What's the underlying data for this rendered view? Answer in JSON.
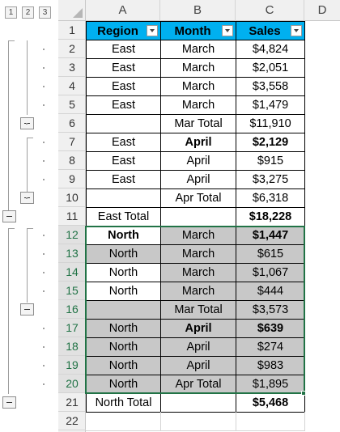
{
  "outline_levels": [
    "1",
    "2",
    "3"
  ],
  "columns": [
    "A",
    "B",
    "C",
    "D"
  ],
  "rows": [
    "1",
    "2",
    "3",
    "4",
    "5",
    "6",
    "7",
    "8",
    "9",
    "10",
    "11",
    "12",
    "13",
    "14",
    "15",
    "16",
    "17",
    "18",
    "19",
    "20",
    "21",
    "22"
  ],
  "headers": {
    "region": "Region",
    "month": "Month",
    "sales": "Sales"
  },
  "table": [
    {
      "a": "East",
      "b": "March",
      "c": "$4,824"
    },
    {
      "a": "East",
      "b": "March",
      "c": "$2,051"
    },
    {
      "a": "East",
      "b": "March",
      "c": "$3,558"
    },
    {
      "a": "East",
      "b": "March",
      "c": "$1,479"
    },
    {
      "a": "",
      "b": "Mar Total",
      "c": "$11,910"
    },
    {
      "a": "East",
      "b": "April",
      "c": "$2,129"
    },
    {
      "a": "East",
      "b": "April",
      "c": "$915"
    },
    {
      "a": "East",
      "b": "April",
      "c": "$3,275"
    },
    {
      "a": "",
      "b": "Apr Total",
      "c": "$6,318"
    },
    {
      "a": "East Total",
      "b": "",
      "c": "$18,228"
    },
    {
      "a": "North",
      "b": "March",
      "c": "$1,447"
    },
    {
      "a": "North",
      "b": "March",
      "c": "$615"
    },
    {
      "a": "North",
      "b": "March",
      "c": "$1,067"
    },
    {
      "a": "North",
      "b": "March",
      "c": "$444"
    },
    {
      "a": "",
      "b": "Mar Total",
      "c": "$3,573"
    },
    {
      "a": "North",
      "b": "April",
      "c": "$639"
    },
    {
      "a": "North",
      "b": "April",
      "c": "$274"
    },
    {
      "a": "North",
      "b": "April",
      "c": "$983"
    },
    {
      "a": "North",
      "b": "Apr Total",
      "c": "$1,895"
    },
    {
      "a": "North Total",
      "b": "",
      "c": "$5,468"
    },
    {
      "a": "",
      "b": "",
      "c": ""
    }
  ],
  "colors": {
    "header_fill": "#00b0f0",
    "selection": "#217346",
    "highlight_fill": "#c8c8c8"
  },
  "icons": {
    "filter": "filter-dropdown-icon",
    "collapse": "collapse-minus-icon"
  }
}
